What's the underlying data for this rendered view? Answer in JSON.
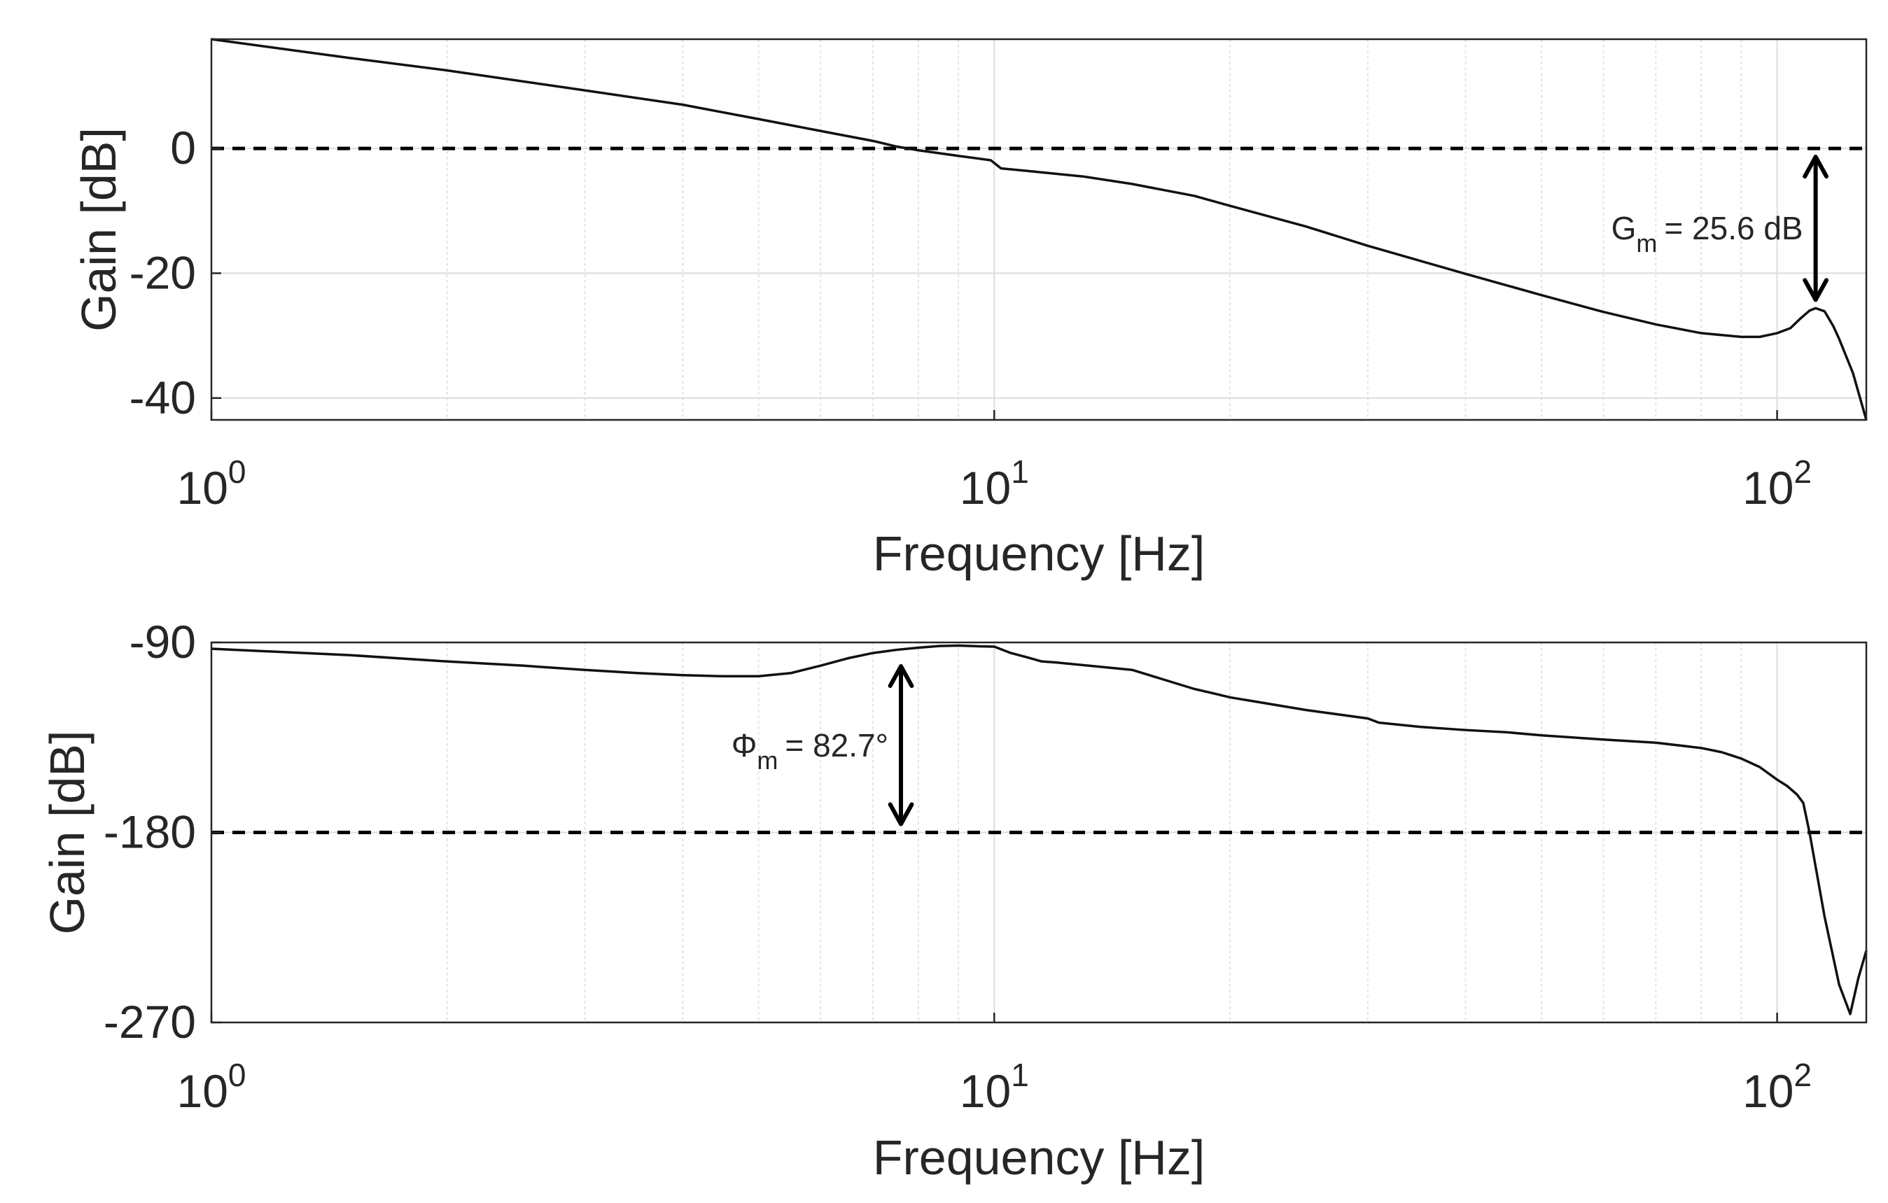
{
  "chart_data": [
    {
      "type": "line",
      "xscale": "log",
      "xlim": [
        1,
        130
      ],
      "ylim": [
        -43.5,
        17.5
      ],
      "xlabel": "Frequency [Hz]",
      "ylabel": "Gain [dB]",
      "xticks": [
        {
          "value": 1,
          "base": "10",
          "exp": "0"
        },
        {
          "value": 10,
          "base": "10",
          "exp": "1"
        },
        {
          "value": 100,
          "base": "10",
          "exp": "2"
        }
      ],
      "yticks": [
        {
          "value": 0,
          "label": "0"
        },
        {
          "value": -20,
          "label": "-20"
        },
        {
          "value": -40,
          "label": "-40"
        }
      ],
      "grid": true,
      "reference_line": {
        "y": 0,
        "style": "dashed"
      },
      "series": [
        {
          "x": [
            1,
            1.5,
            2,
            3,
            4,
            5,
            6,
            7,
            7.5,
            8,
            9,
            9.9,
            10.2,
            11,
            13,
            15,
            18,
            20,
            25,
            30,
            40,
            50,
            60,
            70,
            80,
            90,
            95,
            100,
            104,
            107,
            110,
            112,
            115,
            118,
            120,
            125,
            130
          ],
          "y": [
            17.5,
            14.5,
            12.5,
            9.3,
            7.0,
            4.7,
            2.8,
            1.2,
            0.3,
            -0.3,
            -1.2,
            -1.9,
            -3.2,
            -3.6,
            -4.5,
            -5.7,
            -7.6,
            -9.2,
            -12.5,
            -15.6,
            -20.1,
            -23.5,
            -26.2,
            -28.2,
            -29.6,
            -30.2,
            -30.2,
            -29.6,
            -28.8,
            -27.3,
            -26.0,
            -25.6,
            -26.1,
            -28.5,
            -30.5,
            -36.0,
            -43.5
          ]
        }
      ],
      "annotation": {
        "symbol": "G",
        "subscript": "m",
        "text": "= 25.6 dB",
        "x": 112,
        "from_y": 0,
        "to_y": -25.6
      }
    },
    {
      "type": "line",
      "xscale": "log",
      "xlim": [
        1,
        130
      ],
      "ylim": [
        -270,
        -90
      ],
      "xlabel": "Frequency [Hz]",
      "ylabel": "Gain [dB]",
      "xticks": [
        {
          "value": 1,
          "base": "10",
          "exp": "0"
        },
        {
          "value": 10,
          "base": "10",
          "exp": "1"
        },
        {
          "value": 100,
          "base": "10",
          "exp": "2"
        }
      ],
      "yticks": [
        {
          "value": -90,
          "label": "-90"
        },
        {
          "value": -180,
          "label": "-180"
        },
        {
          "value": -270,
          "label": "-270"
        }
      ],
      "grid": true,
      "reference_line": {
        "y": -180,
        "style": "dashed"
      },
      "series": [
        {
          "x": [
            1,
            1.5,
            2,
            2.5,
            3,
            3.5,
            4,
            4.5,
            5,
            5.5,
            6,
            6.5,
            7,
            7.5,
            8,
            8.5,
            9,
            9.5,
            10,
            10.5,
            11,
            11.5,
            12,
            15,
            18,
            19,
            20,
            25,
            30,
            31,
            35,
            40,
            45,
            50,
            60,
            70,
            80,
            85,
            90,
            95,
            100,
            103,
            106,
            108,
            110,
            115,
            120,
            124,
            127,
            130
          ],
          "y": [
            -93,
            -96,
            -99,
            -101,
            -103,
            -104.5,
            -105.5,
            -106,
            -106,
            -104.5,
            -101,
            -97.5,
            -95,
            -93.5,
            -92.5,
            -91.7,
            -91.5,
            -91.8,
            -92,
            -95,
            -97,
            -99,
            -99.5,
            -103,
            -112,
            -114,
            -116,
            -122,
            -126,
            -128,
            -130,
            -131.5,
            -132.5,
            -134,
            -136,
            -137.5,
            -140,
            -142,
            -145,
            -149,
            -155,
            -158,
            -162,
            -166,
            -180,
            -220,
            -252,
            -266,
            -249,
            -236
          ]
        }
      ],
      "annotation": {
        "symbol": "Φ",
        "subscript": "m",
        "text": "= 82.7°",
        "x": 7.6,
        "from_y": -180,
        "to_y": -97.3
      }
    }
  ]
}
